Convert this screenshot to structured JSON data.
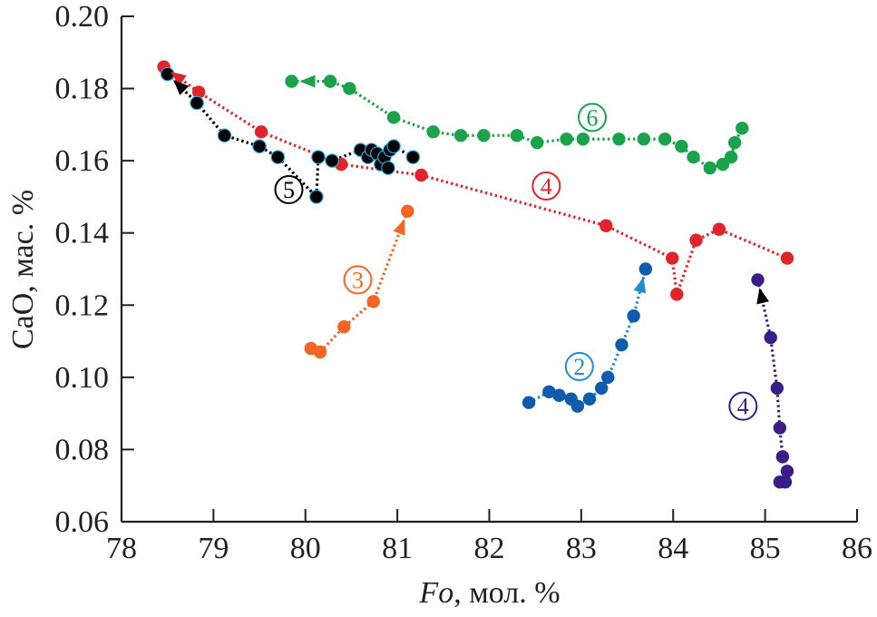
{
  "chart_data": {
    "type": "scatter",
    "title": "",
    "xlabel_italic": "Fo",
    "xlabel_rest": ", мол. %",
    "ylabel": "CaO, мас. %",
    "xlim": [
      78,
      86
    ],
    "ylim": [
      0.06,
      0.2
    ],
    "xticks": [
      "78",
      "79",
      "80",
      "81",
      "82",
      "83",
      "84",
      "85",
      "86"
    ],
    "yticks": [
      "0.06",
      "0.08",
      "0.10",
      "0.12",
      "0.14",
      "0.16",
      "0.18",
      "0.20"
    ],
    "grid": false,
    "legend": "none (circled numbers placed next to series)",
    "series": [
      {
        "name": "6",
        "label": "6",
        "color": "#1aa34a",
        "line": "dotted",
        "arrow": "toward first point",
        "label_at": [
          83.12,
          0.172
        ],
        "points": [
          [
            79.85,
            0.182
          ],
          [
            80.27,
            0.182
          ],
          [
            80.48,
            0.18
          ],
          [
            80.96,
            0.172
          ],
          [
            81.39,
            0.168
          ],
          [
            81.69,
            0.167
          ],
          [
            81.94,
            0.167
          ],
          [
            82.3,
            0.167
          ],
          [
            82.52,
            0.165
          ],
          [
            82.84,
            0.166
          ],
          [
            83.02,
            0.166
          ],
          [
            83.41,
            0.166
          ],
          [
            83.68,
            0.166
          ],
          [
            83.91,
            0.166
          ],
          [
            84.09,
            0.164
          ],
          [
            84.22,
            0.161
          ],
          [
            84.4,
            0.158
          ],
          [
            84.54,
            0.159
          ],
          [
            84.63,
            0.161
          ],
          [
            84.67,
            0.165
          ],
          [
            84.75,
            0.169
          ]
        ]
      },
      {
        "name": "4 (red)",
        "label": "4",
        "color": "#e0242b",
        "line": "dotted",
        "arrow": "toward first point",
        "label_at": [
          82.62,
          0.153
        ],
        "points": [
          [
            78.46,
            0.186
          ],
          [
            78.84,
            0.179
          ],
          [
            79.52,
            0.168
          ],
          [
            80.39,
            0.159
          ],
          [
            81.26,
            0.156
          ],
          [
            83.27,
            0.142
          ],
          [
            83.99,
            0.133
          ],
          [
            84.04,
            0.123
          ],
          [
            84.25,
            0.138
          ],
          [
            84.5,
            0.141
          ],
          [
            85.24,
            0.133
          ]
        ]
      },
      {
        "name": "5",
        "label": "5",
        "color": "#000000",
        "edge_color": "#29a9e0",
        "line": "dotted",
        "arrow": "toward first point",
        "label_at": [
          79.82,
          0.152
        ],
        "points": [
          [
            78.5,
            0.184
          ],
          [
            78.82,
            0.176
          ],
          [
            79.12,
            0.167
          ],
          [
            79.5,
            0.164
          ],
          [
            79.7,
            0.161
          ],
          [
            80.12,
            0.15
          ],
          [
            80.14,
            0.161
          ],
          [
            80.29,
            0.16
          ],
          [
            80.6,
            0.163
          ],
          [
            80.68,
            0.161
          ],
          [
            80.72,
            0.163
          ],
          [
            80.78,
            0.162
          ],
          [
            80.82,
            0.159
          ],
          [
            80.86,
            0.161
          ],
          [
            80.9,
            0.158
          ],
          [
            80.92,
            0.163
          ],
          [
            80.96,
            0.164
          ],
          [
            81.17,
            0.161
          ]
        ]
      },
      {
        "name": "3",
        "label": "3",
        "color": "#f26522",
        "line": "dotted",
        "arrow": "toward last point",
        "label_at": [
          80.57,
          0.127
        ],
        "points": [
          [
            80.06,
            0.108
          ],
          [
            80.16,
            0.107
          ],
          [
            80.42,
            0.114
          ],
          [
            80.74,
            0.121
          ],
          [
            81.11,
            0.146
          ]
        ]
      },
      {
        "name": "2",
        "label": "2",
        "color": "#0e5cab",
        "line": "dotted",
        "line_color": "#1c8fd1",
        "arrow": "toward last point",
        "label_at": [
          82.98,
          0.103
        ],
        "points": [
          [
            82.43,
            0.093
          ],
          [
            82.65,
            0.096
          ],
          [
            82.76,
            0.095
          ],
          [
            82.89,
            0.094
          ],
          [
            82.96,
            0.092
          ],
          [
            83.09,
            0.094
          ],
          [
            83.22,
            0.097
          ],
          [
            83.29,
            0.1
          ],
          [
            83.44,
            0.109
          ],
          [
            83.57,
            0.117
          ],
          [
            83.7,
            0.13
          ]
        ]
      },
      {
        "name": "4 (purple)",
        "label": "4",
        "color": "#3a1d87",
        "line": "dotted",
        "arrow": "toward first point",
        "label_at": [
          84.76,
          0.092
        ],
        "points": [
          [
            84.92,
            0.127
          ],
          [
            85.06,
            0.111
          ],
          [
            85.13,
            0.097
          ],
          [
            85.16,
            0.086
          ],
          [
            85.19,
            0.078
          ],
          [
            85.24,
            0.074
          ],
          [
            85.16,
            0.071
          ],
          [
            85.22,
            0.071
          ]
        ]
      }
    ]
  }
}
